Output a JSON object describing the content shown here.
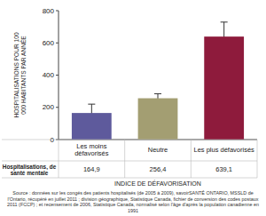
{
  "chart_data": {
    "type": "bar",
    "ylabel": "HOSPITALISATIONS POUR 100 000 HABITANTS PAR ANNÉE",
    "xlabel": "INDICE DE DÉFAVORISATION",
    "source": "Source : données sur les congés des patients hospitalisés (de 2005 à 2009), savoirSANTÉ ONTARIO, MSSLD de l'Ontario, récupéré en juillet 2011 ; division géographique, Statistique Canada, fichier de conversion des codes postaux 2011 (FCCP) ; et recensement de 2006, Statistique Canada, normalisé selon l'âge d'après la population canadienne en 1991",
    "categories": [
      "Les moins défavorisés",
      "Neutre",
      "Les plus défavorisés"
    ],
    "series": [
      {
        "name": "Hospitalisations, de santé mentale",
        "values": [
          164.9,
          256.4,
          639.1
        ],
        "value_labels": [
          "164,9",
          "256,4",
          "639,1"
        ],
        "errors": [
          55,
          28,
          90
        ],
        "colors": [
          "#5e5a9c",
          "#a39e72",
          "#8e1b3c"
        ]
      }
    ],
    "ylim": [
      0,
      800
    ],
    "yticks": [
      0,
      200,
      400,
      600,
      800
    ],
    "grid": false,
    "data_labels": true
  }
}
